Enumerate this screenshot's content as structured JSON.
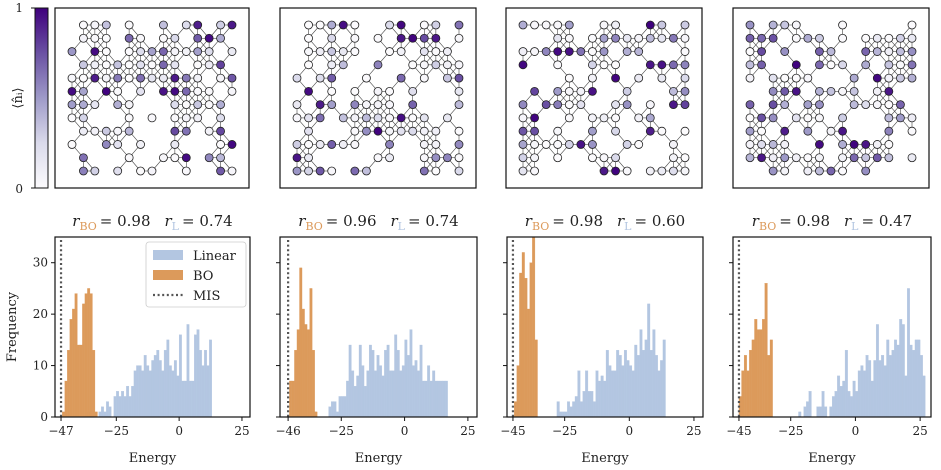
{
  "colorbar": {
    "label": "⟨n̂ᵢ⟩",
    "min_label": "0",
    "max_label": "1",
    "colormap": "Purples",
    "low_color": "#fcfbfd",
    "high_color": "#3f007d"
  },
  "colors": {
    "bo": "#dc9a5b",
    "linear": "#b3c6e1",
    "mis": "#555555"
  },
  "legend": {
    "placement": "top-right",
    "items": [
      {
        "label": "Linear",
        "kind": "bar",
        "series": "linear"
      },
      {
        "label": "BO",
        "kind": "bar",
        "series": "bo"
      },
      {
        "label": "MIS",
        "kind": "dotted-line",
        "series": "mis"
      }
    ]
  },
  "chart_data": [
    {
      "type": "bar",
      "title": {
        "r_label": "r",
        "bo_sub": "BO",
        "bo_value": "= 0.98",
        "l_sub": "L",
        "l_value": "= 0.74"
      },
      "xlabel": "Energy",
      "ylabel": "Frequency",
      "xticks": [
        "−47",
        "−25",
        "0",
        "25"
      ],
      "xtick_values": [
        -47,
        -25,
        0,
        25
      ],
      "yticks": [
        "0",
        "10",
        "20",
        "30"
      ],
      "ytick_values": [
        0,
        10,
        20,
        30
      ],
      "xlim": [
        -49.4,
        28.2
      ],
      "ylim": [
        0,
        35
      ],
      "mis": -47,
      "bo": {
        "bin_start": -46.5,
        "bin_width": 1,
        "counts": [
          1,
          7,
          13,
          19,
          21,
          24,
          14,
          14,
          22,
          24,
          25,
          24,
          13,
          1
        ]
      },
      "linear": {
        "bin_start": -37,
        "bin_width": 1,
        "counts": [
          1,
          1,
          0,
          0,
          0,
          1,
          2,
          1,
          3,
          2,
          0,
          4,
          5,
          4,
          5,
          4,
          6,
          4,
          6,
          9,
          10,
          10,
          9,
          12,
          10,
          9,
          11,
          12,
          13,
          11,
          9,
          13,
          15,
          10,
          9,
          11,
          8,
          16,
          7,
          7,
          18,
          7,
          7,
          16,
          17,
          13,
          10,
          13,
          10,
          15
        ]
      }
    },
    {
      "type": "bar",
      "title": {
        "r_label": "r",
        "bo_sub": "BO",
        "bo_value": "= 0.96",
        "l_sub": "L",
        "l_value": "= 0.74"
      },
      "xlabel": "Energy",
      "xticks": [
        "−46",
        "−25",
        "0",
        "25"
      ],
      "xtick_values": [
        -46,
        -25,
        0,
        25
      ],
      "xlim": [
        -49.2,
        28.6
      ],
      "ylim": [
        0,
        35
      ],
      "mis": -46,
      "bo": {
        "bin_start": -45.5,
        "bin_width": 1,
        "counts": [
          7,
          7,
          13,
          17,
          29,
          21,
          18,
          17,
          25,
          13,
          1
        ]
      },
      "linear": {
        "bin_start": -36,
        "bin_width": 1,
        "counts": [
          1,
          0,
          0,
          0,
          0,
          0,
          2,
          3,
          3,
          1,
          4,
          4,
          4,
          7,
          14,
          9,
          6,
          8,
          14,
          10,
          6,
          9,
          14,
          13,
          9,
          12,
          10,
          8,
          13,
          14,
          9,
          9,
          16,
          13,
          9,
          10,
          15,
          12,
          17,
          10,
          11,
          9,
          14,
          7,
          7,
          10,
          7,
          9,
          7,
          7,
          7,
          7,
          7
        ]
      }
    },
    {
      "type": "bar",
      "title": {
        "r_label": "r",
        "bo_sub": "BO",
        "bo_value": "= 0.98",
        "l_sub": "L",
        "l_value": "= 0.60"
      },
      "xlabel": "Energy",
      "xticks": [
        "−45",
        "−25",
        "0",
        "25"
      ],
      "xtick_values": [
        -45,
        -25,
        0,
        25
      ],
      "xlim": [
        -47.3,
        28.5
      ],
      "ylim": [
        0,
        35
      ],
      "mis": -45,
      "bo": {
        "bin_start": -44.5,
        "bin_width": 1,
        "counts": [
          3,
          10,
          28,
          32,
          27,
          21,
          30,
          35,
          15
        ]
      },
      "linear": {
        "bin_start": -28,
        "bin_width": 1,
        "counts": [
          3,
          1,
          1,
          1,
          3,
          2,
          3,
          4,
          9,
          3,
          5,
          9,
          5,
          5,
          3,
          9,
          7,
          8,
          7,
          13,
          10,
          9,
          9,
          13,
          12,
          10,
          13,
          11,
          10,
          9,
          14,
          12,
          17,
          13,
          15,
          22,
          13,
          17,
          12,
          9,
          11,
          15
        ]
      }
    },
    {
      "type": "bar",
      "title": {
        "r_label": "r",
        "bo_sub": "BO",
        "bo_value": "= 0.98",
        "l_sub": "L",
        "l_value": "= 0.47"
      },
      "xlabel": "Energy",
      "xticks": [
        "−45",
        "−25",
        "0",
        "25"
      ],
      "xtick_values": [
        -45,
        -25,
        0,
        25
      ],
      "xlim": [
        -47.3,
        29.2
      ],
      "ylim": [
        0,
        35
      ],
      "mis": -45,
      "bo": {
        "bin_start": -45,
        "bin_width": 1,
        "counts": [
          4,
          9,
          12,
          9,
          13,
          15,
          19,
          17,
          17,
          19,
          26,
          12,
          15
        ]
      },
      "linear": {
        "bin_start": -22,
        "bin_width": 1,
        "counts": [
          1,
          0,
          2,
          3,
          5,
          0,
          0,
          2,
          2,
          5,
          2,
          0,
          2,
          4,
          5,
          8,
          6,
          7,
          13,
          5,
          4,
          7,
          5,
          9,
          10,
          9,
          12,
          11,
          7,
          11,
          18,
          11,
          12,
          10,
          15,
          12,
          13,
          15,
          14,
          19,
          18,
          8,
          25,
          14,
          13,
          15,
          15,
          12,
          8
        ]
      }
    }
  ]
}
